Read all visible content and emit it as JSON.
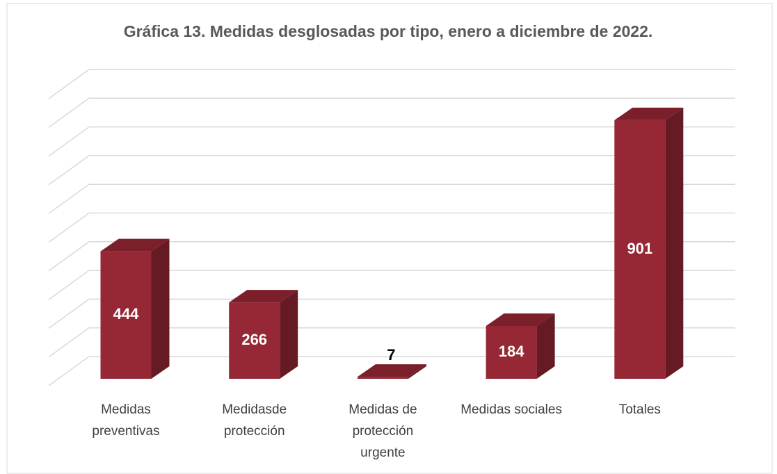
{
  "chart_data": {
    "type": "bar3d",
    "title": "Gráfica 13. Medidas desglosadas por tipo, enero a diciembre de 2022.",
    "categories": [
      "Medidas preventivas",
      "Medidasde protección",
      "Medidas de protección urgente",
      "Medidas sociales",
      "Totales"
    ],
    "values": [
      444,
      266,
      7,
      184,
      901
    ],
    "color": "#962735",
    "ylim": [
      0,
      1000
    ],
    "yticks": [
      0,
      100,
      200,
      300,
      400,
      500,
      600,
      700,
      800,
      900,
      1000
    ],
    "grid": true
  }
}
